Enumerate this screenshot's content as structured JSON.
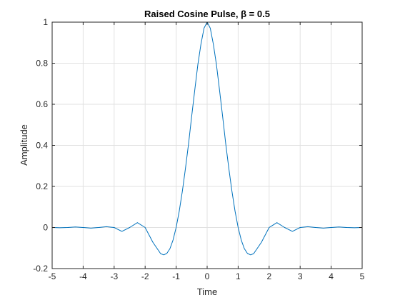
{
  "chart_data": {
    "type": "line",
    "title": "Raised Cosine Pulse, β = 0.5",
    "xlabel": "Time",
    "ylabel": "Amplitude",
    "xlim": [
      -5,
      5
    ],
    "ylim": [
      -0.2,
      1
    ],
    "xticks": [
      -5,
      -4,
      -3,
      -2,
      -1,
      0,
      1,
      2,
      3,
      4,
      5
    ],
    "xtick_labels": [
      "-5",
      "-4",
      "-3",
      "-2",
      "-1",
      "0",
      "1",
      "2",
      "3",
      "4",
      "5"
    ],
    "yticks": [
      -0.2,
      0,
      0.2,
      0.4,
      0.6,
      0.8,
      1
    ],
    "ytick_labels": [
      "-0.2",
      "0",
      "0.2",
      "0.4",
      "0.6",
      "0.8",
      "1"
    ],
    "grid": true,
    "series": [
      {
        "color": "#0072bd",
        "x": [
          -5,
          -4.75,
          -4.5,
          -4.25,
          -4,
          -3.75,
          -3.5,
          -3.25,
          -3,
          -2.75,
          -2.5,
          -2.25,
          -2,
          -1.75,
          -1.5,
          -1.4,
          -1.3,
          -1.2,
          -1.1,
          -1,
          -0.9,
          -0.8,
          -0.7,
          -0.6,
          -0.5,
          -0.4,
          -0.3,
          -0.2,
          -0.1,
          0,
          0.1,
          0.2,
          0.3,
          0.4,
          0.5,
          0.6,
          0.7,
          0.8,
          0.9,
          1,
          1.1,
          1.2,
          1.3,
          1.4,
          1.5,
          1.75,
          2,
          2.25,
          2.5,
          2.75,
          3,
          3.25,
          3.5,
          3.75,
          4,
          4.25,
          4.5,
          4.75,
          5
        ],
        "y": [
          0,
          -0.0011,
          0,
          0.0026,
          0,
          -0.0029,
          0,
          0.0041,
          0,
          -0.0189,
          0,
          0.0236,
          0,
          -0.0721,
          -0.1273,
          -0.1332,
          -0.1261,
          -0.103,
          -0.061,
          0,
          0.0796,
          0.1762,
          0.287,
          0.4071,
          0.5402,
          0.6685,
          0.793,
          0.8928,
          0.971,
          1.0,
          0.971,
          0.8928,
          0.793,
          0.6685,
          0.5402,
          0.4071,
          0.287,
          0.1762,
          0.0796,
          0,
          -0.061,
          -0.103,
          -0.1261,
          -0.1332,
          -0.1273,
          -0.0721,
          0,
          0.0236,
          0,
          -0.0189,
          0,
          0.0041,
          0,
          -0.0029,
          0,
          0.0026,
          0,
          -0.0011,
          0
        ]
      }
    ]
  }
}
